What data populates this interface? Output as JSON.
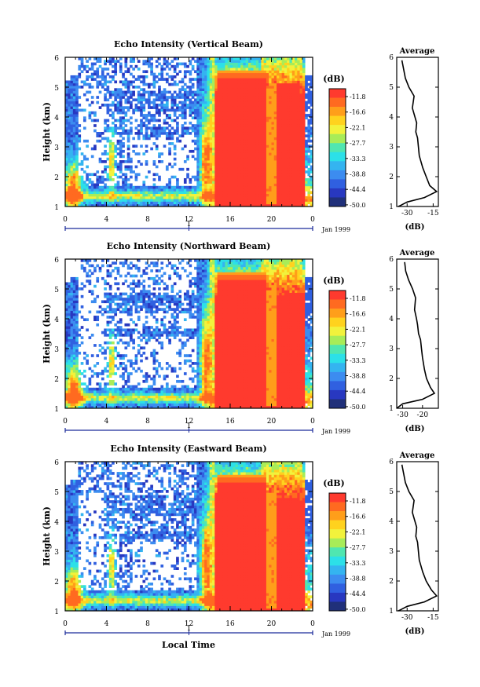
{
  "chart_data": [
    {
      "type": "heatmap",
      "title": "Echo Intensity (Vertical Beam)",
      "ylabel": "Height (km)",
      "ylim": [
        1,
        6
      ],
      "y_ticks": [
        "1",
        "2",
        "3",
        "4",
        "5",
        "6"
      ],
      "xlim": [
        0,
        24
      ],
      "x_ticks": [
        "0",
        "4",
        "8",
        "12",
        "16",
        "20",
        "0"
      ],
      "date_marker": "1",
      "date_label": "Jan 1999",
      "colorbar_unit": "(dB)",
      "colorbar_ticks": [
        "-11.8",
        "-16.6",
        "-22.1",
        "-27.7",
        "-33.3",
        "-38.8",
        "-44.4",
        "-50.0"
      ],
      "profile": {
        "title": "Average",
        "xlabel": "(dB)",
        "x_ticks": [
          "-30",
          "-15"
        ],
        "xlim": [
          -36,
          -12
        ],
        "y_ticks": [
          "1",
          "2",
          "3",
          "4",
          "5",
          "6"
        ],
        "heights": [
          1.0,
          1.15,
          1.3,
          1.5,
          1.7,
          2.0,
          2.3,
          2.7,
          3.0,
          3.3,
          3.5,
          3.8,
          4.0,
          4.3,
          4.7,
          5.0,
          5.3,
          5.6,
          5.9
        ],
        "values": [
          -35,
          -30,
          -20,
          -13,
          -17,
          -19,
          -21,
          -23,
          -23.5,
          -24,
          -25,
          -24.5,
          -25.5,
          -27,
          -26,
          -29,
          -31,
          -32,
          -33
        ]
      }
    },
    {
      "type": "heatmap",
      "title": "Echo Intensity (Northward Beam)",
      "ylabel": "Height (km)",
      "ylim": [
        1,
        6
      ],
      "y_ticks": [
        "1",
        "2",
        "3",
        "4",
        "5",
        "6"
      ],
      "xlim": [
        0,
        24
      ],
      "x_ticks": [
        "0",
        "4",
        "8",
        "12",
        "16",
        "20",
        "0"
      ],
      "date_marker": "1",
      "date_label": "Jan 1999",
      "colorbar_unit": "(dB)",
      "colorbar_ticks": [
        "-11.8",
        "-16.6",
        "-22.1",
        "-27.7",
        "-33.3",
        "-38.8",
        "-44.4",
        "-50.0"
      ],
      "profile": {
        "title": "Average",
        "xlabel": "(dB)",
        "x_ticks": [
          "-30",
          "-20"
        ],
        "xlim": [
          -33,
          -12
        ],
        "y_ticks": [
          "1",
          "2",
          "3",
          "4",
          "5",
          "6"
        ],
        "heights": [
          1.0,
          1.15,
          1.3,
          1.5,
          1.7,
          2.0,
          2.3,
          2.7,
          3.0,
          3.3,
          3.5,
          3.8,
          4.0,
          4.3,
          4.7,
          5.0,
          5.3,
          5.6,
          5.9
        ],
        "values": [
          -33,
          -30,
          -20,
          -14,
          -16,
          -18,
          -19,
          -20,
          -20.5,
          -21,
          -22,
          -22.5,
          -23,
          -24,
          -23.5,
          -25,
          -27,
          -28.5,
          -29
        ]
      }
    },
    {
      "type": "heatmap",
      "title": "Echo Intensity (Eastward Beam)",
      "ylabel": "Height (km)",
      "ylim": [
        1,
        6
      ],
      "y_ticks": [
        "1",
        "2",
        "3",
        "4",
        "5",
        "6"
      ],
      "xlim": [
        0,
        24
      ],
      "x_ticks": [
        "0",
        "4",
        "8",
        "12",
        "16",
        "20",
        "0"
      ],
      "xlabel": "Local Time",
      "date_marker": "1",
      "date_label": "Jan 1999",
      "colorbar_unit": "(dB)",
      "colorbar_ticks": [
        "-11.8",
        "-16.6",
        "-22.1",
        "-27.7",
        "-33.3",
        "-38.8",
        "-44.4",
        "-50.0"
      ],
      "profile": {
        "title": "Average",
        "xlabel": "(dB)",
        "x_ticks": [
          "-30",
          "-15"
        ],
        "xlim": [
          -36,
          -12
        ],
        "y_ticks": [
          "1",
          "2",
          "3",
          "4",
          "5",
          "6"
        ],
        "heights": [
          1.0,
          1.15,
          1.3,
          1.5,
          1.7,
          2.0,
          2.3,
          2.7,
          3.0,
          3.3,
          3.5,
          3.8,
          4.0,
          4.3,
          4.7,
          5.0,
          5.3,
          5.6,
          5.9
        ],
        "values": [
          -35,
          -30,
          -20,
          -13,
          -16,
          -19,
          -21,
          -23,
          -23.5,
          -24,
          -25,
          -24.5,
          -25.5,
          -27,
          -26,
          -29,
          -31,
          -32,
          -33
        ]
      }
    }
  ],
  "colorscale": [
    "#ff3a2e",
    "#ff6a20",
    "#ff9e1a",
    "#ffd21e",
    "#f2f23c",
    "#a8ec58",
    "#50e6b0",
    "#2ce0e8",
    "#34b4f0",
    "#3c8cf0",
    "#3060e0",
    "#2838c0",
    "#20307a"
  ],
  "colors": {
    "no_data": "#ffffff",
    "axis": "#000000",
    "date_line": "#1a2a9a",
    "profile_line": "#000000"
  }
}
